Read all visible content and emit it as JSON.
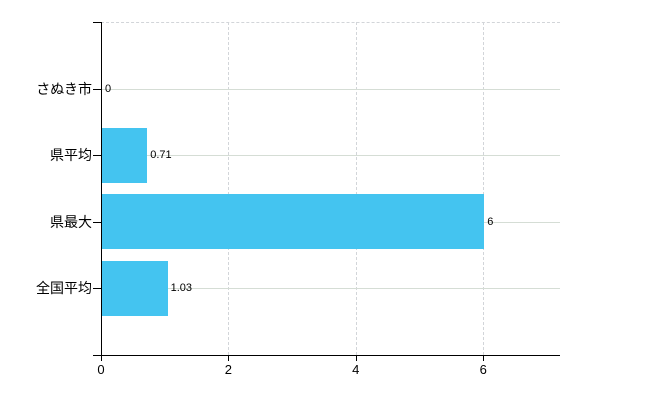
{
  "chart_data": {
    "type": "bar",
    "orientation": "horizontal",
    "title": "",
    "xlabel": "",
    "ylabel": "",
    "categories": [
      "さぬき市",
      "県平均",
      "県最大",
      "全国平均"
    ],
    "values": [
      0,
      0.71,
      6,
      1.03
    ],
    "value_labels": [
      "0",
      "0.71",
      "6",
      "1.03"
    ],
    "x_ticks": [
      0,
      2,
      4,
      6
    ],
    "x_tick_labels": [
      "0",
      "2",
      "4",
      "6"
    ],
    "xlim": [
      0,
      7.2
    ],
    "grid": true,
    "legend": "none",
    "colors": {
      "bar": "#44c4f0",
      "h_grid": "#d5ddd5",
      "v_grid": "#d2d5d9",
      "axis": "#000000",
      "label": "#000000",
      "background": "#ffffff"
    }
  }
}
